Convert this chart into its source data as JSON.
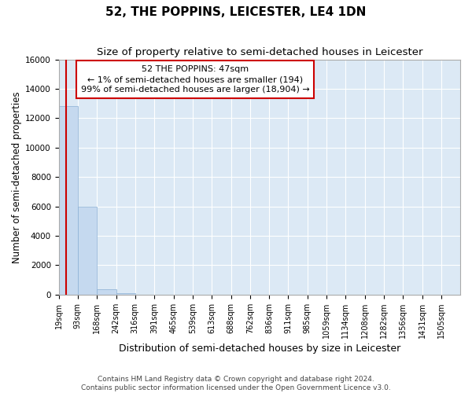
{
  "title": "52, THE POPPINS, LEICESTER, LE4 1DN",
  "subtitle": "Size of property relative to semi-detached houses in Leicester",
  "xlabel": "Distribution of semi-detached houses by size in Leicester",
  "ylabel": "Number of semi-detached properties",
  "footer_line1": "Contains HM Land Registry data © Crown copyright and database right 2024.",
  "footer_line2": "Contains public sector information licensed under the Open Government Licence v3.0.",
  "bin_labels": [
    "19sqm",
    "93sqm",
    "168sqm",
    "242sqm",
    "316sqm",
    "391sqm",
    "465sqm",
    "539sqm",
    "613sqm",
    "688sqm",
    "762sqm",
    "836sqm",
    "911sqm",
    "985sqm",
    "1059sqm",
    "1134sqm",
    "1208sqm",
    "1282sqm",
    "1356sqm",
    "1431sqm",
    "1505sqm"
  ],
  "bar_values": [
    12800,
    6000,
    370,
    120,
    0,
    0,
    0,
    0,
    0,
    0,
    0,
    0,
    0,
    0,
    0,
    0,
    0,
    0,
    0,
    0
  ],
  "bin_edges": [
    19,
    93,
    168,
    242,
    316,
    391,
    465,
    539,
    613,
    688,
    762,
    836,
    911,
    985,
    1059,
    1134,
    1208,
    1282,
    1356,
    1431,
    1505
  ],
  "bar_color": "#c5d9ef",
  "bar_edge_color": "#8ab0d4",
  "property_size": 47,
  "annotation_line1": "52 THE POPPINS: 47sqm",
  "annotation_line2": "← 1% of semi-detached houses are smaller (194)",
  "annotation_line3": "99% of semi-detached houses are larger (18,904) →",
  "vline_color": "#cc0000",
  "annotation_box_color": "#ffffff",
  "annotation_box_edge": "#cc0000",
  "ylim": [
    0,
    16000
  ],
  "yticks": [
    0,
    2000,
    4000,
    6000,
    8000,
    10000,
    12000,
    14000,
    16000
  ],
  "background_color": "#dce9f5",
  "grid_color": "#ffffff",
  "fig_bg_color": "#ffffff",
  "title_fontsize": 11,
  "subtitle_fontsize": 9.5,
  "xlabel_fontsize": 9,
  "ylabel_fontsize": 8.5,
  "tick_fontsize": 7,
  "footer_fontsize": 6.5,
  "annotation_fontsize": 8
}
